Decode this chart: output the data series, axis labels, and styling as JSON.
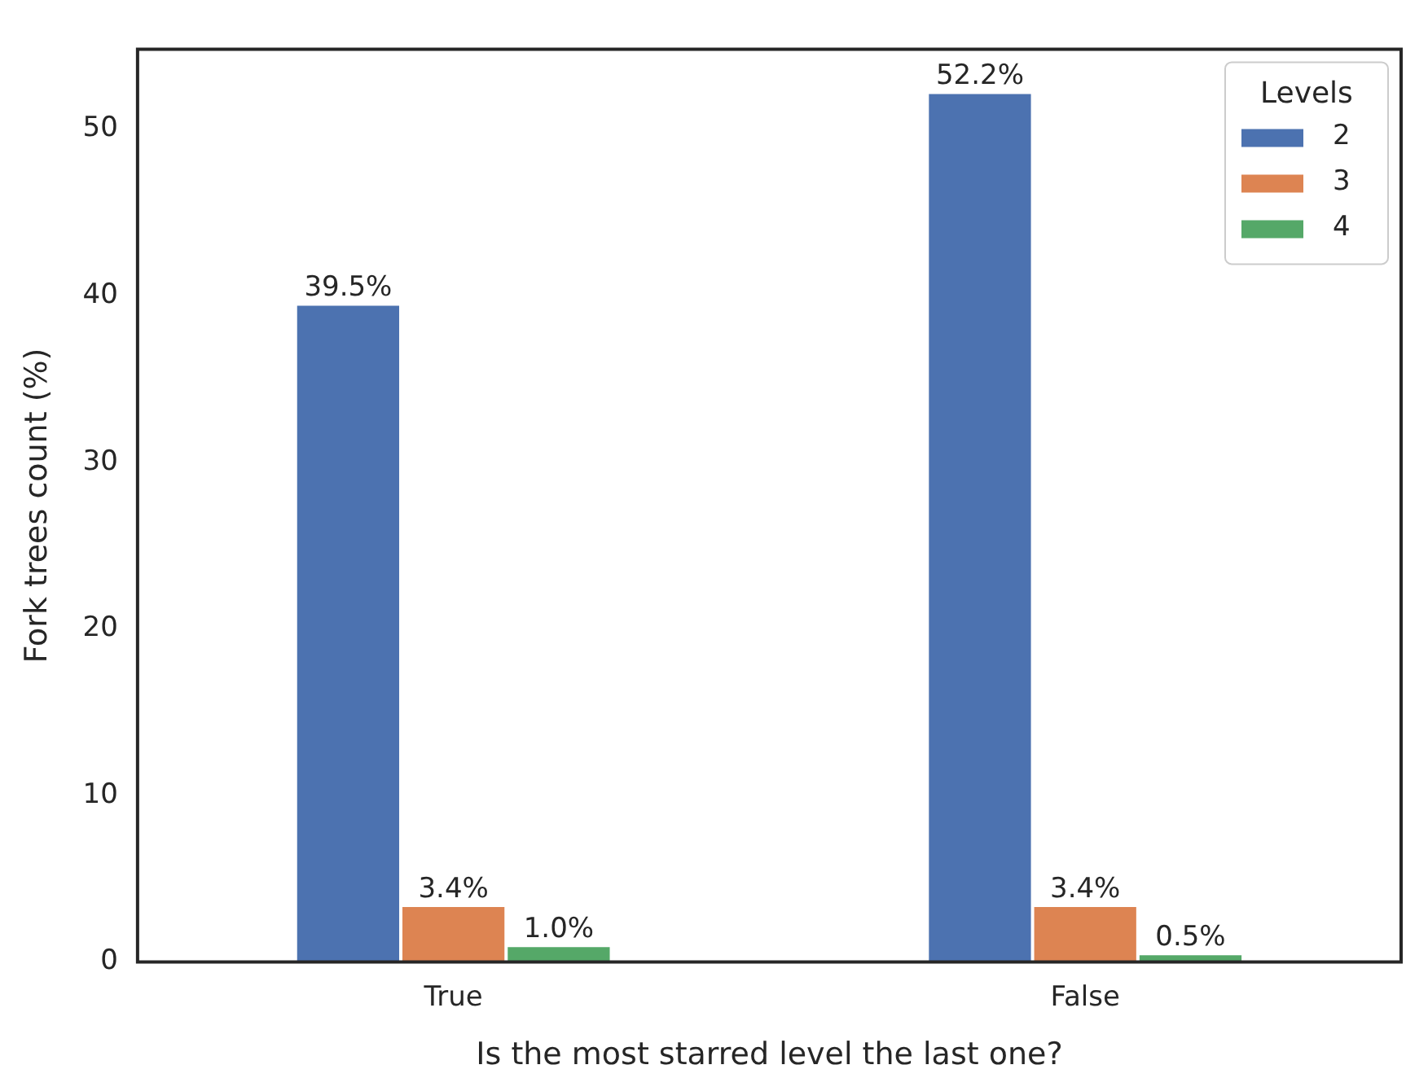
{
  "chart_data": {
    "type": "bar",
    "xlabel": "Is the most starred level the last one?",
    "ylabel": "Fork trees count (%)",
    "legend_title": "Levels",
    "categories": [
      "True",
      "False"
    ],
    "series": [
      {
        "name": "2",
        "color": "#4c72b0",
        "values": [
          39.5,
          52.2
        ],
        "value_labels": [
          "39.5%",
          "52.2%"
        ]
      },
      {
        "name": "3",
        "color": "#dd8452",
        "values": [
          3.4,
          3.4
        ],
        "value_labels": [
          "3.4%",
          "3.4%"
        ]
      },
      {
        "name": "4",
        "color": "#55a868",
        "values": [
          1.0,
          0.5
        ],
        "value_labels": [
          "1.0%",
          "0.5%"
        ]
      }
    ],
    "ylim": [
      0,
      54.8
    ],
    "yticks": [
      0,
      10,
      20,
      30,
      40,
      50
    ],
    "grid": false,
    "legend": "top right"
  }
}
